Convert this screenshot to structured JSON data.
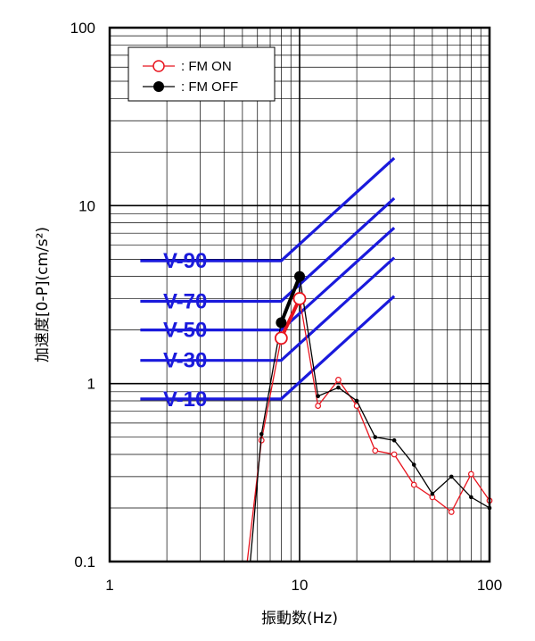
{
  "chart_data": {
    "type": "line",
    "title": "",
    "xlabel": "振動数(Hz)",
    "ylabel": "加速度[0-P](cm/s²)",
    "x_scale": "log",
    "y_scale": "log",
    "xlim": [
      1,
      100
    ],
    "ylim": [
      0.1,
      100
    ],
    "grid": true,
    "x_ticks": [
      "1",
      "10",
      "100"
    ],
    "y_ticks": [
      "0.1",
      "1",
      "10",
      "100"
    ],
    "legend": {
      "placement": "top-left",
      "entries": [
        {
          "label": ": FM ON",
          "marker": "open-circle",
          "color": "#e8141e"
        },
        {
          "label": ": FM OFF",
          "marker": "filled-circle",
          "color": "#000000"
        }
      ]
    },
    "series": [
      {
        "name": ": FM ON",
        "color": "#e8141e",
        "x": [
          5.3,
          6.3,
          8,
          10,
          12.5,
          16,
          20,
          25,
          31.5,
          40,
          50,
          63,
          80,
          100
        ],
        "y": [
          0.1,
          0.48,
          1.8,
          3.0,
          0.75,
          1.05,
          0.75,
          0.42,
          0.4,
          0.27,
          0.23,
          0.19,
          0.31,
          0.22
        ],
        "highlight_points": [
          {
            "x": 8,
            "y": 1.8
          },
          {
            "x": 10,
            "y": 3.0
          }
        ]
      },
      {
        "name": ": FM OFF",
        "color": "#000000",
        "x": [
          5.5,
          6.3,
          8,
          10,
          12.5,
          16,
          20,
          25,
          31.5,
          40,
          50,
          63,
          80,
          100
        ],
        "y": [
          0.1,
          0.52,
          2.2,
          4.0,
          0.85,
          0.95,
          0.8,
          0.5,
          0.48,
          0.35,
          0.24,
          0.3,
          0.23,
          0.2
        ],
        "highlight_points": [
          {
            "x": 8,
            "y": 2.2
          },
          {
            "x": 10,
            "y": 4.0
          }
        ]
      }
    ],
    "reference_curves": {
      "color": "#1a1adc",
      "x_start": 1.45,
      "x_knee": 8,
      "x_end": 31.5,
      "curves": [
        {
          "label": "V-90",
          "flat_value": 4.9,
          "end_value": 18.5
        },
        {
          "label": "V-70",
          "flat_value": 2.9,
          "end_value": 11.0
        },
        {
          "label": "V-50",
          "flat_value": 2.0,
          "end_value": 7.5
        },
        {
          "label": "V-30",
          "flat_value": 1.35,
          "end_value": 5.1
        },
        {
          "label": "V-10",
          "flat_value": 0.82,
          "end_value": 3.1
        }
      ]
    }
  }
}
